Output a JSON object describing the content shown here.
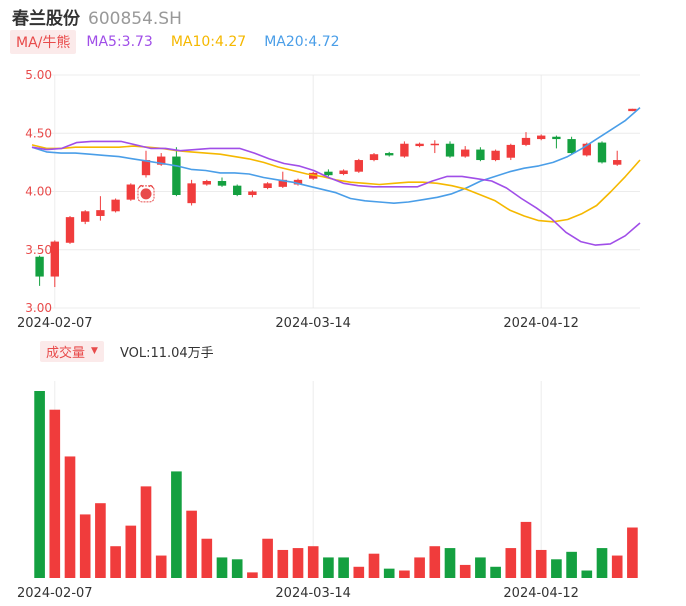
{
  "stock": {
    "name": "春兰股份",
    "code": "600854.SH"
  },
  "ma_bar": {
    "tag": "MA/牛熊",
    "items": [
      {
        "label": "MA5:3.73",
        "color": "#a04ee8"
      },
      {
        "label": "MA10:4.27",
        "color": "#f5b800"
      },
      {
        "label": "MA20:4.72",
        "color": "#4a9ee8"
      }
    ]
  },
  "volume_bar": {
    "tag": "成交量",
    "text": "VOL:11.04万手"
  },
  "colors": {
    "up": "#f03c3c",
    "down": "#14a040",
    "ma5": "#a04ee8",
    "ma10": "#f5b800",
    "ma20": "#4a9ee8",
    "badge": "#e84b4b"
  },
  "chart_data": {
    "type": "candlestick",
    "y_ticks": [
      "3.00",
      "3.50",
      "4.00",
      "4.50",
      "5.00"
    ],
    "ylim": [
      3.0,
      5.0
    ],
    "x_tick_labels": [
      {
        "index": 1,
        "label": "2024-02-07"
      },
      {
        "index": 18,
        "label": "2024-03-14"
      },
      {
        "index": 33,
        "label": "2024-04-12"
      }
    ],
    "candles": [
      {
        "o": 3.44,
        "c": 3.27,
        "h": 3.45,
        "l": 3.19,
        "v": 100
      },
      {
        "o": 3.27,
        "c": 3.57,
        "h": 3.58,
        "l": 3.18,
        "v": 90
      },
      {
        "o": 3.56,
        "c": 3.78,
        "h": 3.79,
        "l": 3.55,
        "v": 65
      },
      {
        "o": 3.74,
        "c": 3.83,
        "h": 3.84,
        "l": 3.72,
        "v": 34
      },
      {
        "o": 3.79,
        "c": 3.84,
        "h": 3.96,
        "l": 3.75,
        "v": 40
      },
      {
        "o": 3.83,
        "c": 3.93,
        "h": 3.94,
        "l": 3.82,
        "v": 17
      },
      {
        "o": 3.93,
        "c": 4.06,
        "h": 4.07,
        "l": 3.92,
        "v": 28
      },
      {
        "o": 4.14,
        "c": 4.27,
        "h": 4.35,
        "l": 4.12,
        "v": 49
      },
      {
        "o": 4.23,
        "c": 4.3,
        "h": 4.33,
        "l": 4.22,
        "v": 12
      },
      {
        "o": 4.3,
        "c": 3.97,
        "h": 4.38,
        "l": 3.96,
        "v": 57
      },
      {
        "o": 3.9,
        "c": 4.07,
        "h": 4.1,
        "l": 3.88,
        "v": 36
      },
      {
        "o": 4.06,
        "c": 4.09,
        "h": 4.1,
        "l": 4.05,
        "v": 21
      },
      {
        "o": 4.09,
        "c": 4.05,
        "h": 4.12,
        "l": 4.04,
        "v": 11
      },
      {
        "o": 4.05,
        "c": 3.97,
        "h": 4.06,
        "l": 3.96,
        "v": 10
      },
      {
        "o": 3.97,
        "c": 4.0,
        "h": 4.01,
        "l": 3.95,
        "v": 3
      },
      {
        "o": 4.03,
        "c": 4.07,
        "h": 4.08,
        "l": 4.02,
        "v": 21
      },
      {
        "o": 4.04,
        "c": 4.1,
        "h": 4.17,
        "l": 4.03,
        "v": 15
      },
      {
        "o": 4.06,
        "c": 4.1,
        "h": 4.11,
        "l": 4.05,
        "v": 16
      },
      {
        "o": 4.11,
        "c": 4.16,
        "h": 4.17,
        "l": 4.1,
        "v": 17
      },
      {
        "o": 4.17,
        "c": 4.14,
        "h": 4.19,
        "l": 4.13,
        "v": 11
      },
      {
        "o": 4.15,
        "c": 4.18,
        "h": 4.19,
        "l": 4.14,
        "v": 11
      },
      {
        "o": 4.17,
        "c": 4.27,
        "h": 4.28,
        "l": 4.16,
        "v": 6
      },
      {
        "o": 4.27,
        "c": 4.32,
        "h": 4.33,
        "l": 4.26,
        "v": 13
      },
      {
        "o": 4.33,
        "c": 4.31,
        "h": 4.34,
        "l": 4.3,
        "v": 5
      },
      {
        "o": 4.3,
        "c": 4.41,
        "h": 4.43,
        "l": 4.29,
        "v": 4
      },
      {
        "o": 4.39,
        "c": 4.41,
        "h": 4.42,
        "l": 4.38,
        "v": 11
      },
      {
        "o": 4.4,
        "c": 4.41,
        "h": 4.44,
        "l": 4.33,
        "v": 17
      },
      {
        "o": 4.41,
        "c": 4.3,
        "h": 4.43,
        "l": 4.29,
        "v": 16
      },
      {
        "o": 4.3,
        "c": 4.36,
        "h": 4.39,
        "l": 4.29,
        "v": 7
      },
      {
        "o": 4.36,
        "c": 4.27,
        "h": 4.38,
        "l": 4.26,
        "v": 11
      },
      {
        "o": 4.27,
        "c": 4.35,
        "h": 4.36,
        "l": 4.26,
        "v": 6
      },
      {
        "o": 4.29,
        "c": 4.4,
        "h": 4.41,
        "l": 4.27,
        "v": 16
      },
      {
        "o": 4.4,
        "c": 4.46,
        "h": 4.51,
        "l": 4.39,
        "v": 30
      },
      {
        "o": 4.45,
        "c": 4.48,
        "h": 4.49,
        "l": 4.44,
        "v": 15
      },
      {
        "o": 4.47,
        "c": 4.45,
        "h": 4.48,
        "l": 4.37,
        "v": 10
      },
      {
        "o": 4.45,
        "c": 4.33,
        "h": 4.47,
        "l": 4.32,
        "v": 14
      },
      {
        "o": 4.31,
        "c": 4.41,
        "h": 4.42,
        "l": 4.3,
        "v": 4
      },
      {
        "o": 4.42,
        "c": 4.25,
        "h": 4.43,
        "l": 4.24,
        "v": 16
      },
      {
        "o": 4.23,
        "c": 4.27,
        "h": 4.35,
        "l": 4.22,
        "v": 12
      },
      {
        "o": 4.69,
        "c": 4.71,
        "h": 4.71,
        "l": 4.69,
        "v": 27
      }
    ],
    "vol_up": [
      false,
      true,
      true,
      true,
      true,
      true,
      true,
      true,
      true,
      false,
      true,
      true,
      false,
      false,
      true,
      true,
      true,
      true,
      true,
      false,
      false,
      true,
      true,
      false,
      true,
      true,
      true,
      false,
      true,
      false,
      false,
      true,
      true,
      true,
      false,
      false,
      false,
      false,
      true,
      true
    ],
    "ma5": [
      4.38,
      4.36,
      4.37,
      4.42,
      4.43,
      4.43,
      4.43,
      4.4,
      4.37,
      4.37,
      4.35,
      4.36,
      4.37,
      4.37,
      4.37,
      4.33,
      4.28,
      4.24,
      4.22,
      4.18,
      4.12,
      4.07,
      4.05,
      4.04,
      4.04,
      4.04,
      4.04,
      4.09,
      4.13,
      4.13,
      4.11,
      4.09,
      4.03,
      3.94,
      3.86,
      3.77,
      3.65,
      3.57,
      3.54,
      3.55,
      3.62,
      3.73
    ],
    "ma10": [
      4.4,
      4.37,
      4.37,
      4.38,
      4.38,
      4.38,
      4.38,
      4.39,
      4.38,
      4.37,
      4.35,
      4.34,
      4.33,
      4.32,
      4.3,
      4.28,
      4.25,
      4.21,
      4.18,
      4.15,
      4.13,
      4.1,
      4.08,
      4.07,
      4.06,
      4.07,
      4.08,
      4.08,
      4.07,
      4.05,
      4.02,
      3.97,
      3.92,
      3.84,
      3.79,
      3.75,
      3.74,
      3.76,
      3.81,
      3.88,
      4.0,
      4.13,
      4.27
    ],
    "ma20": [
      4.38,
      4.34,
      4.33,
      4.33,
      4.32,
      4.31,
      4.3,
      4.28,
      4.26,
      4.24,
      4.22,
      4.19,
      4.18,
      4.16,
      4.16,
      4.15,
      4.12,
      4.1,
      4.08,
      4.05,
      4.02,
      3.99,
      3.94,
      3.92,
      3.91,
      3.9,
      3.91,
      3.93,
      3.95,
      3.98,
      4.03,
      4.09,
      4.13,
      4.17,
      4.2,
      4.22,
      4.25,
      4.3,
      4.37,
      4.45,
      4.53,
      4.61,
      4.72
    ]
  }
}
